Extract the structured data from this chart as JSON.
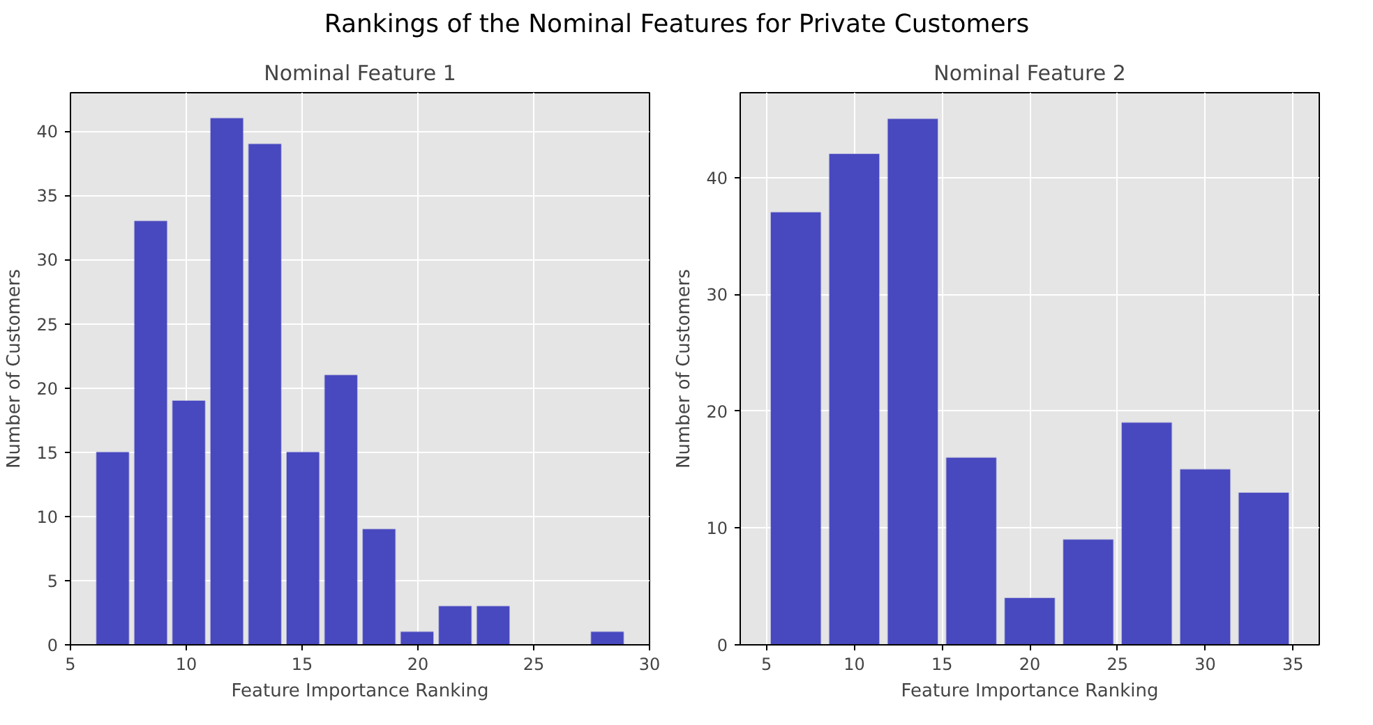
{
  "chart_data": [
    {
      "type": "histogram",
      "title": "Nominal Feature 1",
      "annotations": [
        "Rankings of the Nominal Features for Private Customers"
      ],
      "xlabel": "Feature Importance Ranking",
      "ylabel": "Number of Customers",
      "bins": [
        6,
        7.643,
        9.286,
        10.929,
        12.571,
        14.214,
        15.857,
        17.5,
        19.143,
        20.786,
        22.429,
        24.071,
        25.714,
        27.357,
        29
      ],
      "values": [
        15,
        33,
        19,
        41,
        39,
        15,
        21,
        9,
        1,
        3,
        3,
        0,
        0,
        1
      ],
      "color": "#4848bf",
      "xlim": [
        5,
        30
      ],
      "xticks": [
        5,
        10,
        15,
        20,
        25,
        30
      ],
      "ylim": [
        0,
        43
      ],
      "yticks": [
        0,
        5,
        10,
        15,
        20,
        25,
        30,
        35,
        40
      ],
      "grid": true
    },
    {
      "type": "histogram",
      "title": "Nominal Feature 2",
      "xlabel": "Feature Importance Ranking",
      "ylabel": "Number of Customers",
      "bins": [
        5,
        8.333,
        11.667,
        15,
        18.333,
        21.667,
        25,
        28.333,
        31.667,
        35
      ],
      "values": [
        37,
        42,
        45,
        16,
        4,
        9,
        19,
        15,
        13
      ],
      "color": "#4848bf",
      "xlim": [
        3.5,
        36.5
      ],
      "xticks": [
        5,
        10,
        15,
        20,
        25,
        30,
        35
      ],
      "ylim": [
        0,
        47.25
      ],
      "yticks": [
        0,
        10,
        20,
        30,
        40
      ],
      "grid": true
    }
  ]
}
